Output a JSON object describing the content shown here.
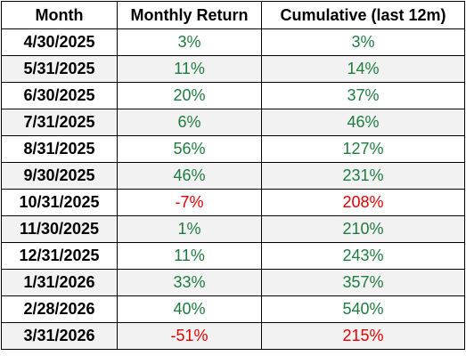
{
  "table": {
    "header": [
      "Month",
      "Monthly Return",
      "Cumulative (last 12m)"
    ],
    "rows": [
      {
        "month": "4/30/2025",
        "monthly_return": "3%",
        "cumulative": "3%",
        "monthly_color": "#1f7a3f",
        "cumulative_color": "#1f7a3f"
      },
      {
        "month": "5/31/2025",
        "monthly_return": "11%",
        "cumulative": "14%",
        "monthly_color": "#1f7a3f",
        "cumulative_color": "#1f7a3f"
      },
      {
        "month": "6/30/2025",
        "monthly_return": "20%",
        "cumulative": "37%",
        "monthly_color": "#1f7a3f",
        "cumulative_color": "#1f7a3f"
      },
      {
        "month": "7/31/2025",
        "monthly_return": "6%",
        "cumulative": "46%",
        "monthly_color": "#1f7a3f",
        "cumulative_color": "#1f7a3f"
      },
      {
        "month": "8/31/2025",
        "monthly_return": "56%",
        "cumulative": "127%",
        "monthly_color": "#1f7a3f",
        "cumulative_color": "#1f7a3f"
      },
      {
        "month": "9/30/2025",
        "monthly_return": "46%",
        "cumulative": "231%",
        "monthly_color": "#1f7a3f",
        "cumulative_color": "#1f7a3f"
      },
      {
        "month": "10/31/2025",
        "monthly_return": "-7%",
        "cumulative": "208%",
        "monthly_color": "#e00000",
        "cumulative_color": "#e00000"
      },
      {
        "month": "11/30/2025",
        "monthly_return": "1%",
        "cumulative": "210%",
        "monthly_color": "#1f7a3f",
        "cumulative_color": "#1f7a3f"
      },
      {
        "month": "12/31/2025",
        "monthly_return": "11%",
        "cumulative": "243%",
        "monthly_color": "#1f7a3f",
        "cumulative_color": "#1f7a3f"
      },
      {
        "month": "1/31/2026",
        "monthly_return": "33%",
        "cumulative": "357%",
        "monthly_color": "#1f7a3f",
        "cumulative_color": "#1f7a3f"
      },
      {
        "month": "2/28/2026",
        "monthly_return": "40%",
        "cumulative": "540%",
        "monthly_color": "#1f7a3f",
        "cumulative_color": "#1f7a3f"
      },
      {
        "month": "3/31/2026",
        "monthly_return": "-51%",
        "cumulative": "215%",
        "monthly_color": "#e00000",
        "cumulative_color": "#e00000"
      }
    ],
    "stripe_color": "#f2f2f2"
  }
}
